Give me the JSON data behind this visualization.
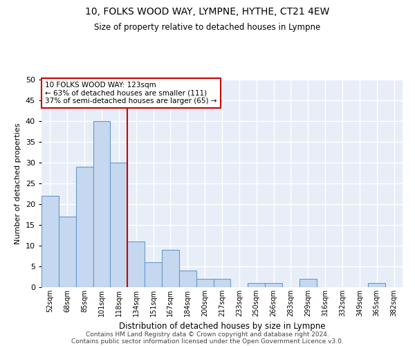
{
  "title_line1": "10, FOLKS WOOD WAY, LYMPNE, HYTHE, CT21 4EW",
  "title_line2": "Size of property relative to detached houses in Lympne",
  "xlabel": "Distribution of detached houses by size in Lympne",
  "ylabel": "Number of detached properties",
  "categories": [
    "52sqm",
    "68sqm",
    "85sqm",
    "101sqm",
    "118sqm",
    "134sqm",
    "151sqm",
    "167sqm",
    "184sqm",
    "200sqm",
    "217sqm",
    "233sqm",
    "250sqm",
    "266sqm",
    "283sqm",
    "299sqm",
    "316sqm",
    "332sqm",
    "349sqm",
    "365sqm",
    "382sqm"
  ],
  "values": [
    22,
    17,
    29,
    40,
    30,
    11,
    6,
    9,
    4,
    2,
    2,
    0,
    1,
    1,
    0,
    2,
    0,
    0,
    0,
    1,
    0
  ],
  "bar_color": "#c5d8ef",
  "bar_edge_color": "#6699cc",
  "vline_color": "#cc0000",
  "vline_pos": 4.5,
  "annotation_box_text": "10 FOLKS WOOD WAY: 123sqm\n← 63% of detached houses are smaller (111)\n37% of semi-detached houses are larger (65) →",
  "annotation_box_color": "#cc0000",
  "bg_color": "#e8eef8",
  "grid_color": "#ffffff",
  "footer_line1": "Contains HM Land Registry data © Crown copyright and database right 2024.",
  "footer_line2": "Contains public sector information licensed under the Open Government Licence v3.0.",
  "ylim": [
    0,
    50
  ],
  "yticks": [
    0,
    5,
    10,
    15,
    20,
    25,
    30,
    35,
    40,
    45,
    50
  ]
}
